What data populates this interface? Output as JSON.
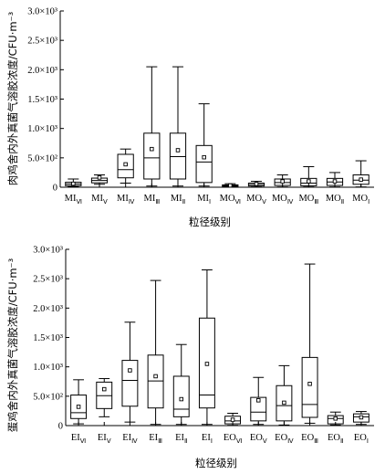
{
  "chart_data": [
    {
      "type": "box",
      "ylabel": "肉鸡舍内外真菌气溶胶浓度/CFU·m⁻³",
      "xlabel": "粒径级别",
      "ylim": [
        0,
        3000
      ],
      "ytick_labels": [
        "0",
        "5.0×10²",
        "1.0×10³",
        "1.5×10³",
        "2.0×10³",
        "2.5×10³",
        "3.0×10³"
      ],
      "categories": [
        {
          "base": "MI",
          "sub": "Ⅵ"
        },
        {
          "base": "MI",
          "sub": "Ⅴ"
        },
        {
          "base": "MI",
          "sub": "Ⅳ"
        },
        {
          "base": "MI",
          "sub": "Ⅲ"
        },
        {
          "base": "MI",
          "sub": "Ⅱ"
        },
        {
          "base": "MI",
          "sub": "Ⅰ"
        },
        {
          "base": "MO",
          "sub": "Ⅵ"
        },
        {
          "base": "MO",
          "sub": "Ⅴ"
        },
        {
          "base": "MO",
          "sub": "Ⅳ"
        },
        {
          "base": "MO",
          "sub": "Ⅲ"
        },
        {
          "base": "MO",
          "sub": "Ⅱ"
        },
        {
          "base": "MO",
          "sub": "Ⅰ"
        }
      ],
      "boxes": [
        {
          "min": 10,
          "q1": 25,
          "median": 55,
          "q3": 85,
          "max": 140,
          "mean": 60
        },
        {
          "min": 50,
          "q1": 75,
          "median": 115,
          "q3": 155,
          "max": 210,
          "mean": 165
        },
        {
          "min": 70,
          "q1": 160,
          "median": 300,
          "q3": 560,
          "max": 650,
          "mean": 390
        },
        {
          "min": 20,
          "q1": 140,
          "median": 500,
          "q3": 920,
          "max": 2050,
          "mean": 650
        },
        {
          "min": 20,
          "q1": 140,
          "median": 520,
          "q3": 920,
          "max": 2050,
          "mean": 630
        },
        {
          "min": 20,
          "q1": 80,
          "median": 430,
          "q3": 710,
          "max": 1420,
          "mean": 510
        },
        {
          "min": 5,
          "q1": 15,
          "median": 30,
          "q3": 40,
          "max": 60,
          "mean": 30
        },
        {
          "min": 5,
          "q1": 20,
          "median": 45,
          "q3": 70,
          "max": 100,
          "mean": 55
        },
        {
          "min": 5,
          "q1": 30,
          "median": 80,
          "q3": 140,
          "max": 210,
          "mean": 100
        },
        {
          "min": 5,
          "q1": 25,
          "median": 70,
          "q3": 150,
          "max": 350,
          "mean": 100
        },
        {
          "min": 5,
          "q1": 30,
          "median": 90,
          "q3": 150,
          "max": 250,
          "mean": 100
        },
        {
          "min": 5,
          "q1": 50,
          "median": 120,
          "q3": 210,
          "max": 450,
          "mean": 130
        }
      ]
    },
    {
      "type": "box",
      "ylabel": "蛋鸡舍内外真菌气溶胶浓度/CFU·m⁻³",
      "xlabel": "粒径级别",
      "ylim": [
        0,
        3000
      ],
      "ytick_labels": [
        "0",
        "5.0×10²",
        "1.0×10³",
        "1.5×10³",
        "2.0×10³",
        "2.5×10³",
        "3.0×10³"
      ],
      "categories": [
        {
          "base": "EI",
          "sub": "Ⅵ"
        },
        {
          "base": "EI",
          "sub": "Ⅴ"
        },
        {
          "base": "EI",
          "sub": "Ⅳ"
        },
        {
          "base": "EI",
          "sub": "Ⅲ"
        },
        {
          "base": "EI",
          "sub": "Ⅱ"
        },
        {
          "base": "EI",
          "sub": "Ⅰ"
        },
        {
          "base": "EO",
          "sub": "Ⅵ"
        },
        {
          "base": "EO",
          "sub": "Ⅴ"
        },
        {
          "base": "EO",
          "sub": "Ⅳ"
        },
        {
          "base": "EO",
          "sub": "Ⅲ"
        },
        {
          "base": "EO",
          "sub": "Ⅱ"
        },
        {
          "base": "EO",
          "sub": "Ⅰ"
        }
      ],
      "boxes": [
        {
          "min": 30,
          "q1": 120,
          "median": 220,
          "q3": 520,
          "max": 780,
          "mean": 320
        },
        {
          "min": 150,
          "q1": 290,
          "median": 510,
          "q3": 740,
          "max": 800,
          "mean": 620
        },
        {
          "min": 60,
          "q1": 330,
          "median": 770,
          "q3": 1110,
          "max": 1760,
          "mean": 940
        },
        {
          "min": 20,
          "q1": 300,
          "median": 760,
          "q3": 1200,
          "max": 2470,
          "mean": 840
        },
        {
          "min": 20,
          "q1": 150,
          "median": 280,
          "q3": 840,
          "max": 1380,
          "mean": 450
        },
        {
          "min": 20,
          "q1": 300,
          "median": 520,
          "q3": 1830,
          "max": 2650,
          "mean": 1050
        },
        {
          "min": 5,
          "q1": 30,
          "median": 80,
          "q3": 160,
          "max": 210,
          "mean": 100
        },
        {
          "min": 20,
          "q1": 80,
          "median": 230,
          "q3": 480,
          "max": 820,
          "mean": 430
        },
        {
          "min": 10,
          "q1": 80,
          "median": 340,
          "q3": 680,
          "max": 1020,
          "mean": 390
        },
        {
          "min": 40,
          "q1": 140,
          "median": 360,
          "q3": 1160,
          "max": 2750,
          "mean": 710
        },
        {
          "min": 10,
          "q1": 30,
          "median": 120,
          "q3": 170,
          "max": 230,
          "mean": 120
        },
        {
          "min": 20,
          "q1": 60,
          "median": 150,
          "q3": 200,
          "max": 240,
          "mean": 140
        }
      ]
    }
  ]
}
